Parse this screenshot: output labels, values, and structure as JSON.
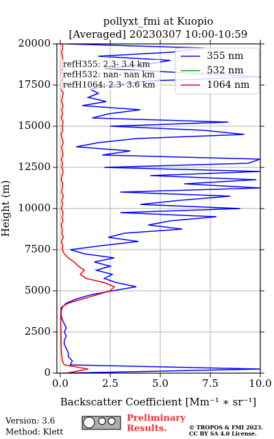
{
  "chart_data": {
    "type": "profile",
    "title": "pollyxt_fmi at Kuopio",
    "subtitle": "[Averaged] 20230307 10:00-10:59",
    "xlabel": "Backscatter Coefficient [Mm⁻¹ ∗ sr⁻¹]",
    "ylabel": "Height (m)",
    "xlim": [
      -0.17,
      10
    ],
    "ylim": [
      0,
      20000
    ],
    "xticks": [
      {
        "value": 0,
        "label": "0.0"
      },
      {
        "value": 2.5,
        "label": "2.5"
      },
      {
        "value": 5,
        "label": "5.0"
      },
      {
        "value": 7.5,
        "label": "7.5"
      },
      {
        "value": 10,
        "label": "10.0"
      }
    ],
    "yticks": [
      0,
      2500,
      5000,
      7500,
      10000,
      12500,
      15000,
      17500,
      20000
    ],
    "grid": true,
    "legend": "upper right",
    "y": [
      0,
      250,
      500,
      750,
      1000,
      1250,
      1500,
      1750,
      2000,
      2250,
      2500,
      2750,
      3000,
      3250,
      3500,
      3750,
      4000,
      4250,
      4500,
      4750,
      5000,
      5250,
      5500,
      5750,
      6000,
      6250,
      6500,
      6750,
      7000,
      7250,
      7500,
      7750,
      8000,
      8250,
      8500,
      8750,
      9000,
      9250,
      9500,
      9750,
      10000,
      10250,
      10500,
      10750,
      11000,
      11250,
      11500,
      11750,
      12000,
      12250,
      12500,
      12750,
      13000,
      13250,
      13500,
      13750,
      14000,
      14250,
      14500,
      14750,
      15000,
      15250,
      15500,
      15750,
      16000,
      16250,
      16500,
      16750,
      17000,
      17250,
      17500,
      17750,
      18000,
      18250,
      18500,
      18750,
      19000,
      19250,
      19500,
      19750,
      20000
    ],
    "series": [
      {
        "name": "355 nm",
        "color": "#0000ff",
        "values": [
          0.1,
          10,
          0.5,
          0.6,
          0.4,
          0.4,
          0.3,
          0.2,
          0.2,
          0.3,
          0.2,
          0.3,
          0.2,
          0.1,
          0.05,
          0.05,
          0.1,
          0.3,
          0.8,
          1.5,
          2.6,
          3.8,
          2.8,
          2.2,
          2.6,
          1.8,
          2.5,
          1.7,
          2.7,
          1.2,
          0.5,
          2.1,
          3.9,
          2.4,
          3.2,
          6.1,
          4.4,
          5.5,
          7.8,
          3.0,
          9.0,
          4.0,
          6.0,
          8.5,
          3.0,
          10,
          6.2,
          9.8,
          4.5,
          10,
          2.2,
          9.4,
          10,
          2.1,
          3.5,
          0.8,
          1.9,
          3.8,
          9.2,
          7.2,
          2.5,
          8.4,
          1.6,
          2.4,
          4.0,
          1.1,
          2.3,
          1.4,
          1.9,
          1.5,
          2.5,
          4.5,
          10,
          6.1,
          2.2,
          4.3,
          5.5,
          1.9,
          5.6,
          7.2,
          0.3
        ]
      },
      {
        "name": "532 nm",
        "color": "#00aa00",
        "values": [
          null,
          null,
          null,
          null,
          null,
          null,
          null,
          null,
          null,
          null,
          null,
          null,
          null,
          null,
          null,
          null,
          null,
          null,
          null,
          null,
          null,
          null,
          null,
          null,
          null,
          null,
          null,
          null,
          null,
          null,
          null,
          null,
          null,
          null,
          null,
          null,
          null,
          null,
          null,
          null,
          null,
          null,
          null,
          null,
          null,
          null,
          null,
          null,
          null,
          null,
          null,
          null,
          null,
          null,
          null,
          null,
          null,
          null,
          null,
          null,
          null,
          null,
          null,
          null,
          null,
          null,
          null,
          null,
          null,
          null,
          null,
          null,
          null,
          null,
          null,
          null,
          null,
          null,
          null,
          null,
          null
        ]
      },
      {
        "name": "1064 nm",
        "color": "#ee0000",
        "values": [
          0.3,
          1.4,
          0.2,
          0.1,
          0.08,
          0.06,
          0.05,
          0.05,
          0.04,
          0.04,
          0.04,
          0.03,
          0.03,
          0.03,
          0.03,
          0.04,
          0.05,
          0.4,
          1.1,
          1.8,
          2.5,
          2.7,
          2.2,
          1.3,
          1.0,
          1.2,
          0.9,
          0.7,
          0.4,
          0.2,
          0.1,
          0.12,
          0.06,
          0.15,
          0.08,
          0.1,
          0.05,
          0.13,
          0.09,
          0.14,
          0.06,
          0.11,
          0.08,
          0.15,
          0.07,
          0.1,
          0.12,
          0.05,
          0.09,
          0.14,
          0.08,
          0.11,
          0.06,
          0.13,
          0.1,
          0.07,
          0.15,
          0.09,
          0.05,
          0.12,
          0.1,
          0.14,
          0.06,
          0.11,
          0.08,
          0.13,
          0.07,
          0.1,
          0.15,
          0.05,
          0.12,
          0.09,
          0.14,
          0.06,
          0.11,
          0.08,
          0.13,
          0.1,
          0.07,
          0.12,
          0.09
        ]
      }
    ],
    "annotations": [
      "refH355:  2.3- 3.4 km",
      "refH532:  nan- nan km",
      "refH1064:  2.3- 3.6 km"
    ],
    "footer": {
      "version": "Version: 3.6",
      "method": "Method: Klett",
      "status": [
        "Preliminary",
        "Results."
      ],
      "copyright": [
        "© TROPOS & FMI 2023.",
        "CC BY SA 4.0 License."
      ]
    }
  }
}
